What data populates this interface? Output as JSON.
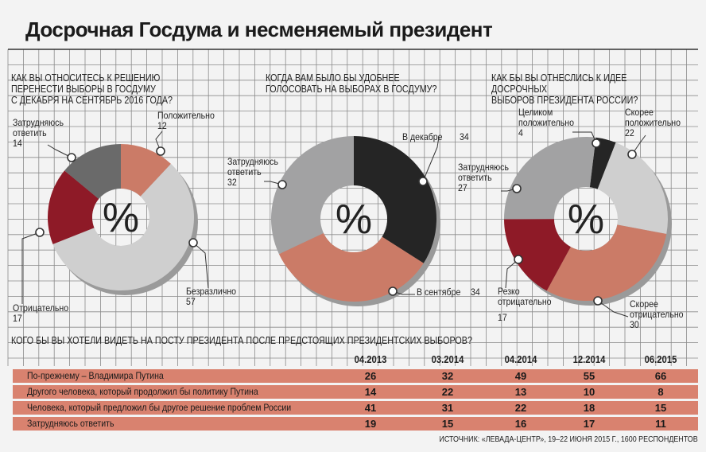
{
  "title": "Досрочная Госдума и несменяемый президент",
  "colors": {
    "salmon": "#cb7b67",
    "light_gray": "#cfcfcf",
    "dark_gray": "#6a6a6a",
    "mid_gray": "#a2a2a3",
    "black": "#252525",
    "red": "#8e1a27",
    "table_row": "#d9826f",
    "grid": "#8a8a8a"
  },
  "chart_data": [
    {
      "type": "pie",
      "title": "КАК ВЫ ОТНОСИТЕСЬ К РЕШЕНИЮ ПЕРЕНЕСТИ ВЫБОРЫ В ГОСДУМУ С ДЕКАБРЯ НА СЕНТЯБРЬ 2016 ГОДА?",
      "title_lines": "КАК ВЫ ОТНОСИТЕСЬ К РЕШЕНИЮ\nПЕРЕНЕСТИ ВЫБОРЫ В ГОСДУМУ\nС ДЕКАБРЯ НА СЕНТЯБРЬ 2016 ГОДА?",
      "center_label": "%",
      "slices": [
        {
          "label": "Положительно",
          "value": 12,
          "color": "#cb7b67"
        },
        {
          "label": "Безразлично",
          "value": 57,
          "color": "#cfcfcf"
        },
        {
          "label": "Отрицательно",
          "value": 17,
          "color": "#8e1a27"
        },
        {
          "label": "Затрудняюсь ответить",
          "label_lines": "Затрудняюсь\nответить",
          "value": 14,
          "color": "#6a6a6a"
        }
      ]
    },
    {
      "type": "pie",
      "title": "КОГДА ВАМ БЫЛО БЫ УДОБНЕЕ ГОЛОСОВАТЬ НА ВЫБОРАХ В ГОСДУМУ?",
      "title_lines": "КОГДА ВАМ БЫЛО БЫ УДОБНЕЕ\nГОЛОСОВАТЬ НА ВЫБОРАХ В ГОСДУМУ?",
      "center_label": "%",
      "slices": [
        {
          "label": "В декабре",
          "value": 34,
          "color": "#252525"
        },
        {
          "label": "В сентябре",
          "value": 34,
          "color": "#cb7b67"
        },
        {
          "label": "Затрудняюсь ответить",
          "label_lines": "Затрудняюсь\nответить",
          "value": 32,
          "color": "#a2a2a3"
        }
      ]
    },
    {
      "type": "pie",
      "title": "КАК БЫ ВЫ ОТНЕСЛИСЬ К ИДЕЕ ДОСРОЧНЫХ ВЫБОРОВ ПРЕЗИДЕНТА РОССИИ?",
      "title_lines": "КАК БЫ ВЫ ОТНЕСЛИСЬ К ИДЕЕ ДОСРОЧНЫХ\nВЫБОРОВ ПРЕЗИДЕНТА РОССИИ?",
      "center_label": "%",
      "slices": [
        {
          "label": "Целиком положительно",
          "label_lines": "Целиком\nположительно",
          "value": 4,
          "color": "#252525"
        },
        {
          "label": "Скорее положительно",
          "label_lines": "Скорее\nположительно",
          "value": 22,
          "color": "#cfcfcf"
        },
        {
          "label": "Скорее отрицательно",
          "label_lines": "Скорее\nотрицательно",
          "value": 30,
          "color": "#cb7b67"
        },
        {
          "label": "Резко отрицательно",
          "label_lines": "Резко\nотрицательно",
          "value": 17,
          "color": "#8e1a27"
        },
        {
          "label": "Затрудняюсь ответить",
          "label_lines": "Затрудняюсь\nответить",
          "value": 27,
          "color": "#a2a2a3"
        }
      ]
    },
    {
      "type": "table",
      "title": "КОГО БЫ ВЫ ХОТЕЛИ ВИДЕТЬ НА ПОСТУ ПРЕЗИДЕНТА ПОСЛЕ ПРЕДСТОЯЩИХ ПРЕЗИДЕНТСКИХ ВЫБОРОВ?",
      "columns": [
        "04.2013",
        "03.2014",
        "04.2014",
        "12.2014",
        "06.2015"
      ],
      "rows": [
        {
          "label": "По-прежнему – Владимира Путина",
          "values": [
            26,
            32,
            49,
            55,
            66
          ]
        },
        {
          "label": "Другого человека, который продолжил бы политику Путина",
          "values": [
            14,
            22,
            13,
            10,
            8
          ]
        },
        {
          "label": "Человека, который предложил бы другое решение проблем России",
          "values": [
            41,
            31,
            22,
            18,
            15
          ]
        },
        {
          "label": "Затрудняюсь ответить",
          "values": [
            19,
            15,
            16,
            17,
            11
          ]
        }
      ]
    }
  ],
  "source": "ИСТОЧНИК: «ЛЕВАДА-ЦЕНТР», 19–22 ИЮНЯ 2015 Г., 1600 РЕСПОНДЕНТОВ"
}
